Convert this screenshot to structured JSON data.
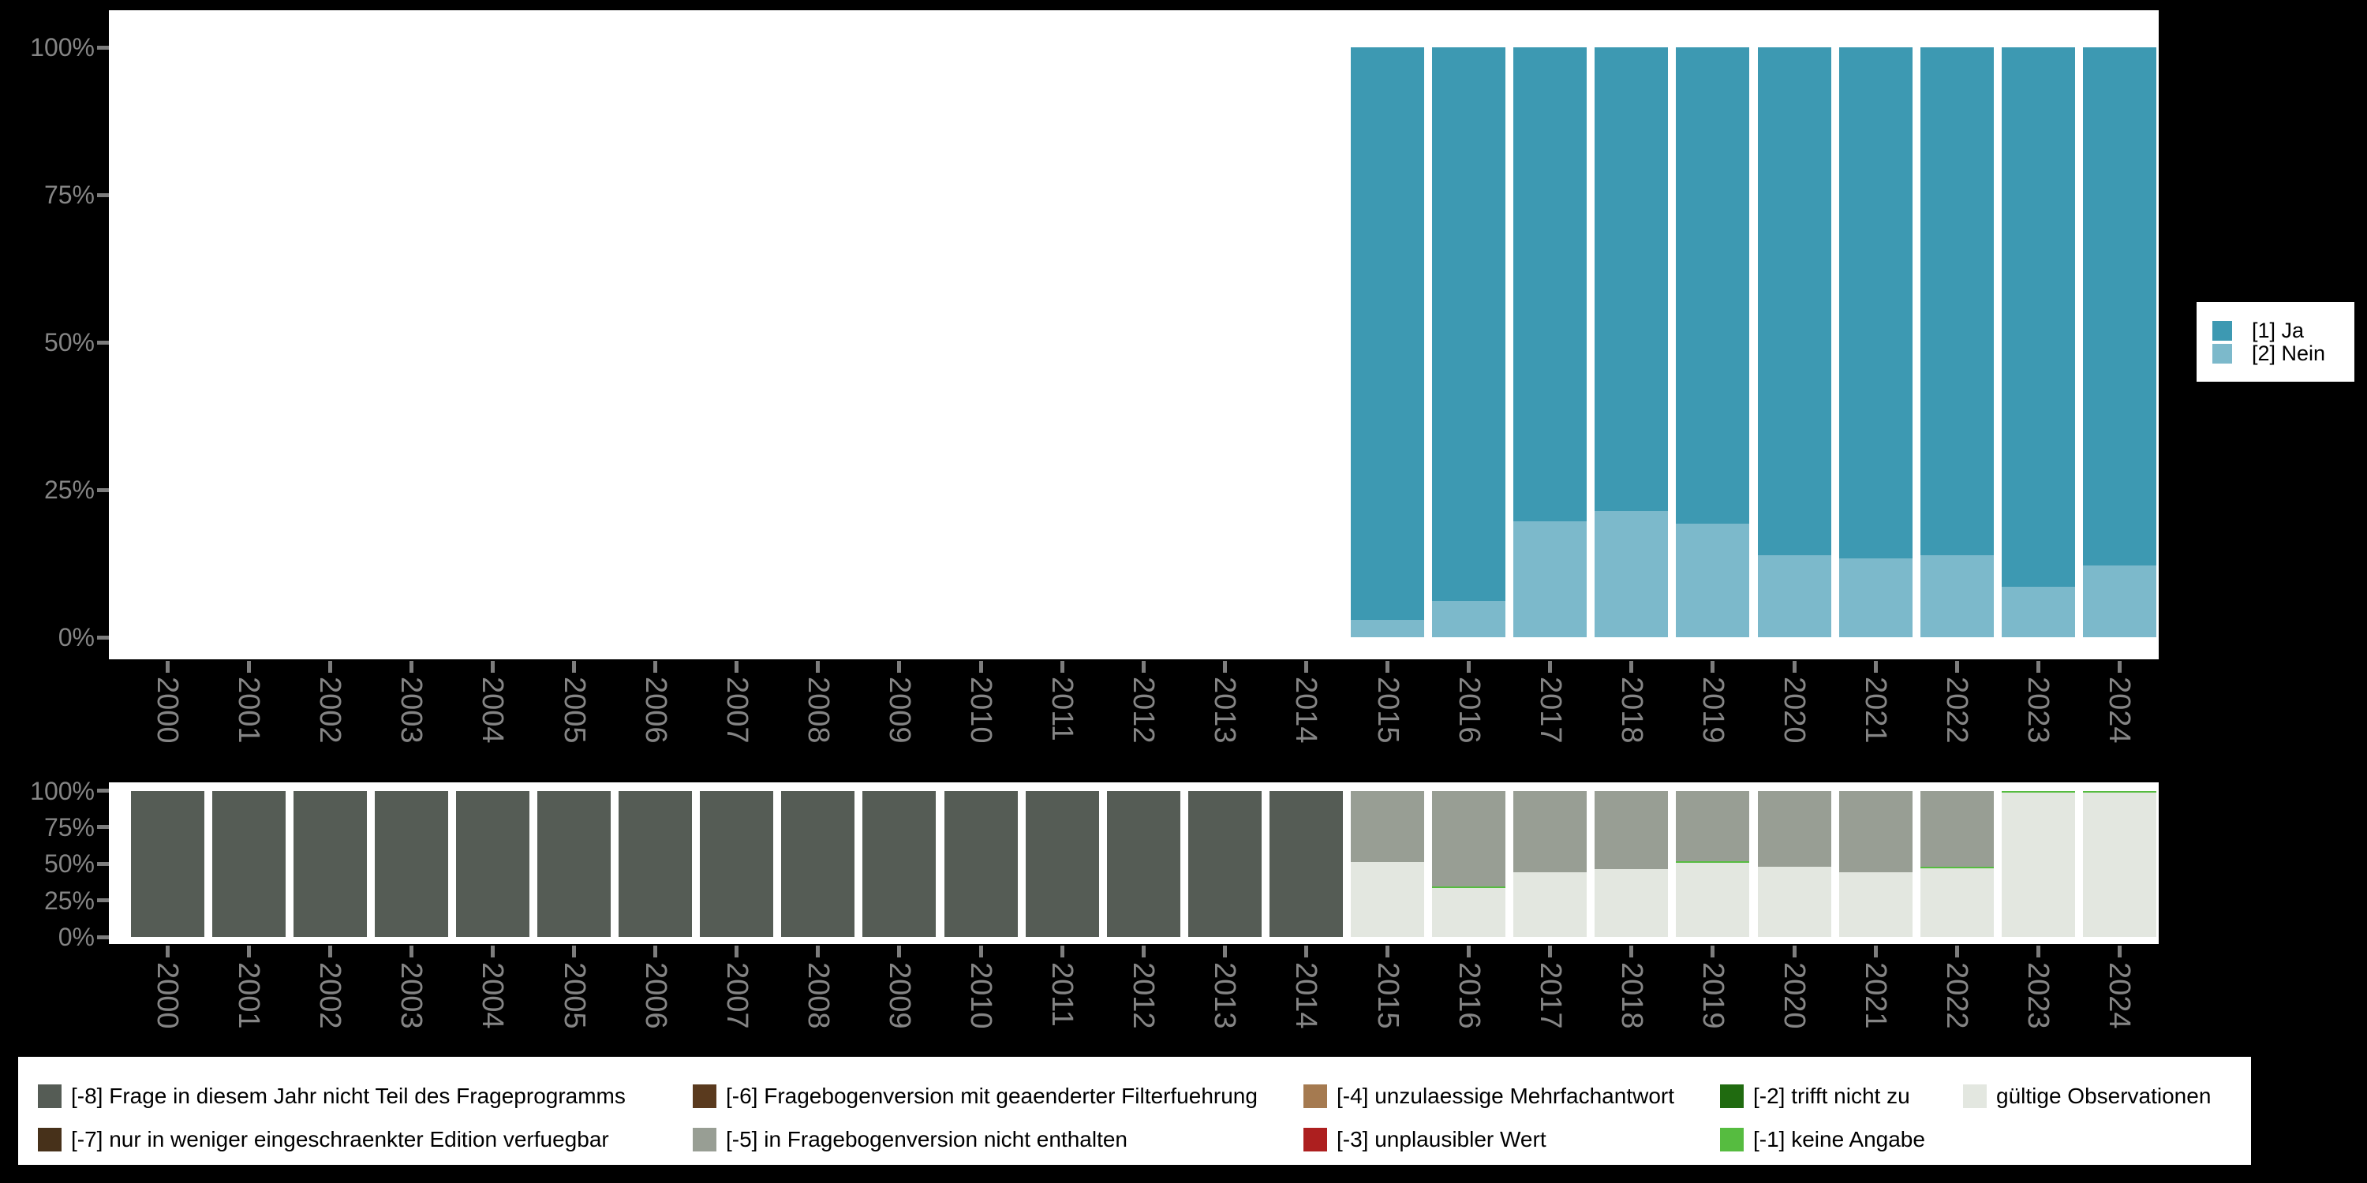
{
  "background_color": "#000000",
  "axis": {
    "text_color": "#858585",
    "tick_color": "#7d7d7d",
    "ytick_labels": [
      "0%",
      "25%",
      "50%",
      "75%",
      "100%"
    ]
  },
  "chart_data": [
    {
      "type": "bar",
      "stacked": true,
      "title": "",
      "xlabel": "",
      "ylabel": "",
      "ylim": [
        0,
        100
      ],
      "unit": "percent",
      "grid": false,
      "legend_position": "right",
      "categories": [
        "2000",
        "2001",
        "2002",
        "2003",
        "2004",
        "2005",
        "2006",
        "2007",
        "2008",
        "2009",
        "2010",
        "2011",
        "2012",
        "2013",
        "2014",
        "2015",
        "2016",
        "2017",
        "2018",
        "2019",
        "2020",
        "2021",
        "2022",
        "2023",
        "2024"
      ],
      "series": [
        {
          "name": "[2] Nein",
          "color": "#7cb9cb",
          "values": [
            0,
            0,
            0,
            0,
            0,
            0,
            0,
            0,
            0,
            0,
            0,
            0,
            0,
            0,
            0,
            2.9,
            6.2,
            19.7,
            21.4,
            19.3,
            13.9,
            13.4,
            13.9,
            8.5,
            12.1
          ]
        },
        {
          "name": "[1] Ja",
          "color": "#3d99b2",
          "values": [
            0,
            0,
            0,
            0,
            0,
            0,
            0,
            0,
            0,
            0,
            0,
            0,
            0,
            0,
            0,
            97.1,
            93.8,
            80.3,
            78.6,
            80.7,
            86.1,
            86.6,
            86.1,
            91.5,
            87.9
          ]
        }
      ]
    },
    {
      "type": "bar",
      "stacked": true,
      "title": "",
      "xlabel": "",
      "ylabel": "",
      "ylim": [
        0,
        100
      ],
      "unit": "percent",
      "grid": false,
      "legend_position": "bottom",
      "categories": [
        "2000",
        "2001",
        "2002",
        "2003",
        "2004",
        "2005",
        "2006",
        "2007",
        "2008",
        "2009",
        "2010",
        "2011",
        "2012",
        "2013",
        "2014",
        "2015",
        "2016",
        "2017",
        "2018",
        "2019",
        "2020",
        "2021",
        "2022",
        "2023",
        "2024"
      ],
      "series": [
        {
          "name": "gültige Observationen",
          "color": "#e3e7e0",
          "values": [
            0,
            0,
            0,
            0,
            0,
            0,
            0,
            0,
            0,
            0,
            0,
            0,
            0,
            0,
            0,
            51.4,
            34.1,
            44.1,
            46.1,
            51.4,
            48.2,
            44.1,
            47.5,
            99.3,
            99.4
          ]
        },
        {
          "name": "[-1] keine Angabe",
          "color": "#56bc40",
          "values": [
            0,
            0,
            0,
            0,
            0,
            0,
            0,
            0,
            0,
            0,
            0,
            0,
            0,
            0,
            0,
            0,
            0.6,
            0,
            0,
            0.5,
            0,
            0,
            0.5,
            0.7,
            0.6
          ]
        },
        {
          "name": "[-2] trifft nicht zu",
          "color": "#206b10",
          "values": [
            0,
            0,
            0,
            0,
            0,
            0,
            0,
            0,
            0,
            0,
            0,
            0,
            0,
            0,
            0,
            0,
            0,
            0,
            0,
            0,
            0,
            0,
            0,
            0,
            0
          ]
        },
        {
          "name": "[-3] unplausibler Wert",
          "color": "#ad1f1f",
          "values": [
            0,
            0,
            0,
            0,
            0,
            0,
            0,
            0,
            0,
            0,
            0,
            0,
            0,
            0,
            0,
            0,
            0,
            0,
            0,
            0,
            0,
            0,
            0,
            0,
            0
          ]
        },
        {
          "name": "[-4] unzulaessige Mehrfachantwort",
          "color": "#a57a50",
          "values": [
            0,
            0,
            0,
            0,
            0,
            0,
            0,
            0,
            0,
            0,
            0,
            0,
            0,
            0,
            0,
            0,
            0,
            0,
            0,
            0,
            0,
            0,
            0,
            0,
            0
          ]
        },
        {
          "name": "[-5] in Fragebogenversion nicht enthalten",
          "color": "#989e94",
          "values": [
            0,
            0,
            0,
            0,
            0,
            0,
            0,
            0,
            0,
            0,
            0,
            0,
            0,
            0,
            0,
            48.6,
            65.3,
            55.9,
            53.9,
            48.1,
            51.8,
            55.9,
            52.0,
            0,
            0
          ]
        },
        {
          "name": "[-6] Fragebogenversion mit geaenderter Filterfuehrung",
          "color": "#5a3a1e",
          "values": [
            0,
            0,
            0,
            0,
            0,
            0,
            0,
            0,
            0,
            0,
            0,
            0,
            0,
            0,
            0,
            0,
            0,
            0,
            0,
            0,
            0,
            0,
            0,
            0,
            0
          ]
        },
        {
          "name": "[-7] nur in weniger eingeschraenkter Edition verfuegbar",
          "color": "#47311a",
          "values": [
            0,
            0,
            0,
            0,
            0,
            0,
            0,
            0,
            0,
            0,
            0,
            0,
            0,
            0,
            0,
            0,
            0,
            0,
            0,
            0,
            0,
            0,
            0,
            0,
            0
          ]
        },
        {
          "name": "[-8] Frage in diesem Jahr nicht Teil des Frageprogramms",
          "color": "#555c55",
          "values": [
            100,
            100,
            100,
            100,
            100,
            100,
            100,
            100,
            100,
            100,
            100,
            100,
            100,
            100,
            100,
            0,
            0,
            0,
            0,
            0,
            0,
            0,
            0,
            0,
            0
          ]
        }
      ]
    }
  ],
  "top_legend": {
    "items": [
      {
        "label": "[1] Ja",
        "color": "#3d99b2"
      },
      {
        "label": "[2] Nein",
        "color": "#7cb9cb"
      }
    ]
  },
  "bottom_legend": {
    "columns": [
      [
        {
          "label": "[-8] Frage in diesem Jahr nicht Teil des Frageprogramms",
          "color": "#555c55"
        },
        {
          "label": "[-7] nur in weniger eingeschraenkter Edition verfuegbar",
          "color": "#47311a"
        }
      ],
      [
        {
          "label": "[-6] Fragebogenversion mit geaenderter Filterfuehrung",
          "color": "#5a3a1e"
        },
        {
          "label": "[-5] in Fragebogenversion nicht enthalten",
          "color": "#989e94"
        }
      ],
      [
        {
          "label": "[-4] unzulaessige Mehrfachantwort",
          "color": "#a57a50"
        },
        {
          "label": "[-3] unplausibler Wert",
          "color": "#ad1f1f"
        }
      ],
      [
        {
          "label": "[-2] trifft nicht zu",
          "color": "#206b10"
        },
        {
          "label": "[-1] keine Angabe",
          "color": "#56bc40"
        }
      ],
      [
        {
          "label": "gültige Observationen",
          "color": "#e3e7e0"
        }
      ]
    ]
  }
}
